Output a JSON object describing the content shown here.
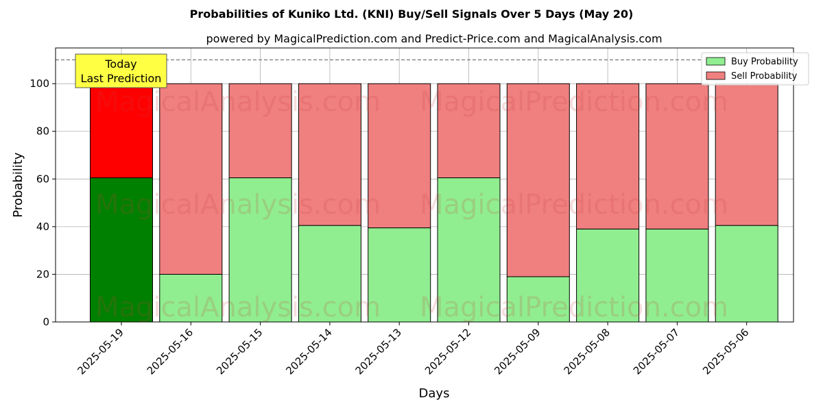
{
  "chart_data": {
    "type": "bar",
    "stacked": true,
    "title": "Probabilities of Kuniko Ltd. (KNI) Buy/Sell Signals Over 5 Days (May 20)",
    "subtitle": "powered by MagicalPrediction.com and Predict-Price.com and MagicalAnalysis.com",
    "xlabel": "Days",
    "ylabel": "Probability",
    "ylim": [
      0,
      115
    ],
    "yticks": [
      0,
      20,
      40,
      60,
      80,
      100
    ],
    "reference_line": 110,
    "grid": true,
    "legend_position": "top-right",
    "categories": [
      "2025-05-19",
      "2025-05-16",
      "2025-05-15",
      "2025-05-14",
      "2025-05-13",
      "2025-05-12",
      "2025-05-09",
      "2025-05-08",
      "2025-05-07",
      "2025-05-06"
    ],
    "series": [
      {
        "name": "Buy Probability",
        "values": [
          60.5,
          20,
          60.5,
          40.5,
          39.5,
          60.5,
          19,
          39,
          39,
          40.5
        ],
        "color": "#90ee90",
        "highlight_color": "#008000"
      },
      {
        "name": "Sell Probability",
        "values": [
          39.5,
          80,
          39.5,
          59.5,
          60.5,
          39.5,
          81,
          61,
          61,
          59.5
        ],
        "color": "#f08080",
        "highlight_color": "#ff0000"
      }
    ],
    "highlight_index": 0,
    "annotation": {
      "lines": [
        "Today",
        "Last Prediction"
      ],
      "color": "#ffff44"
    },
    "watermarks": [
      "MagicalAnalysis.com",
      "MagicalPrediction.com"
    ]
  }
}
